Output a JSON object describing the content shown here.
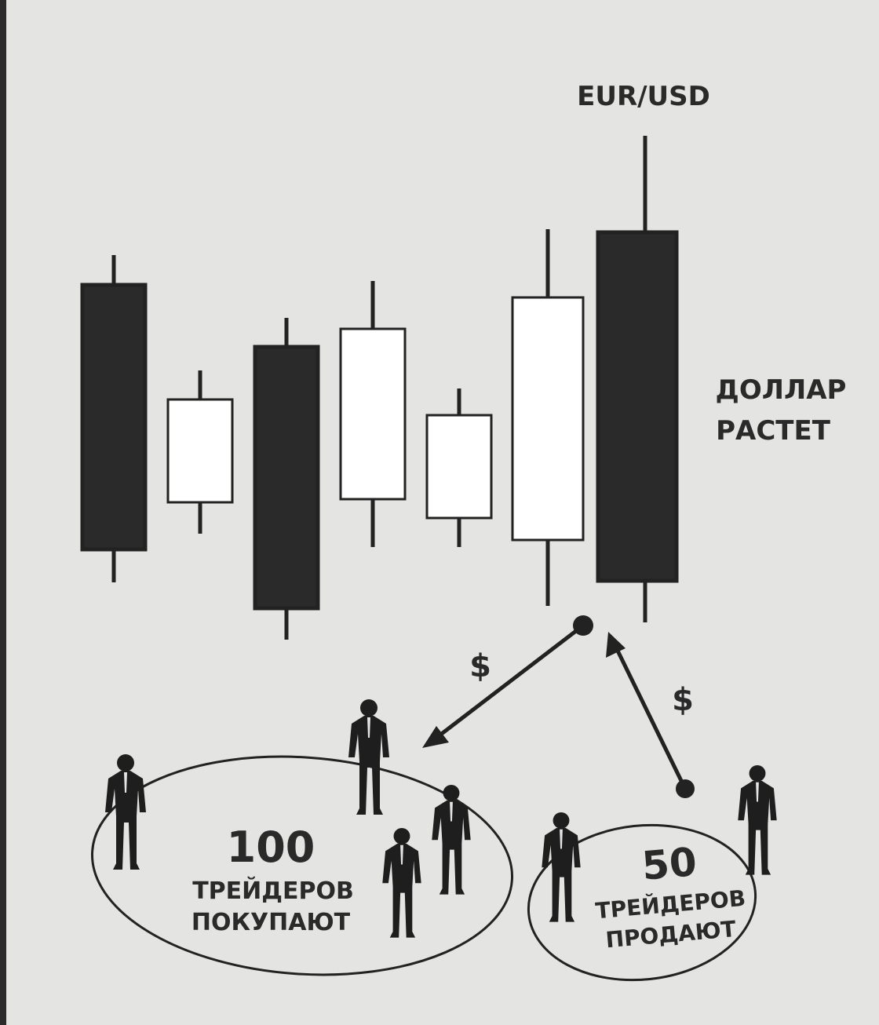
{
  "diagram": {
    "pair_label": "EUR/USD",
    "trend_label": [
      "ДОЛЛАР",
      "РАСТЕТ"
    ],
    "flows": [
      "$",
      "$"
    ],
    "groups": [
      {
        "count": 100,
        "caption": [
          "ТРЕЙДЕРОВ",
          "ПОКУПАЮТ"
        ]
      },
      {
        "count": 50,
        "caption": [
          "ТРЕЙДЕРОВ",
          "ПРОДАЮТ"
        ]
      }
    ]
  }
}
